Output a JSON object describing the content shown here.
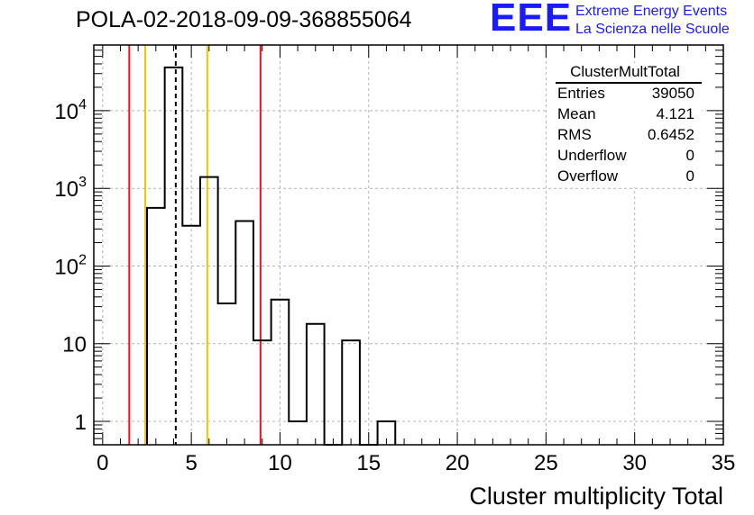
{
  "title": "POLA-02-2018-09-09-368855064",
  "logo": {
    "mark": "EEE",
    "line1": "Extreme Energy Events",
    "line2": "La Scienza nelle Scuole"
  },
  "stats_box": {
    "header": "ClusterMultTotal",
    "rows": [
      {
        "label": "Entries",
        "value": "39050"
      },
      {
        "label": "Mean",
        "value": "4.121"
      },
      {
        "label": "RMS",
        "value": "0.6452"
      },
      {
        "label": "Underflow",
        "value": "0"
      },
      {
        "label": "Overflow",
        "value": "0"
      }
    ]
  },
  "colors": {
    "histogram": "#000000",
    "red_line": "#e8141e",
    "yellow_line": "#f5c400",
    "mean_line": "#000000",
    "grid": "#b4b4b4",
    "logo": "#1a1aff"
  },
  "chart_data": {
    "type": "bar",
    "style": "step-histogram",
    "xlabel": "Cluster multiplicity Total",
    "ylabel": "",
    "xlim": [
      -0.5,
      35
    ],
    "ylim": [
      0.5,
      70000
    ],
    "log_y": true,
    "grid": true,
    "bin_width": 1,
    "bins_x_low": [
      2.5,
      3.5,
      4.5,
      5.5,
      6.5,
      7.5,
      8.5,
      9.5,
      10.5,
      11.5,
      12.5,
      13.5,
      14.5,
      15.5
    ],
    "values": [
      560,
      36000,
      330,
      1400,
      33,
      380,
      11,
      37,
      1,
      18,
      0,
      11,
      0,
      1
    ],
    "x_ticks": [
      0,
      5,
      10,
      15,
      20,
      25,
      30,
      35
    ],
    "x_tick_labels": [
      "0",
      "5",
      "10",
      "15",
      "20",
      "25",
      "30",
      "35"
    ],
    "y_ticks": [
      1,
      10,
      100,
      1000,
      10000
    ],
    "y_tick_labels": [
      {
        "base": "1",
        "exp": ""
      },
      {
        "base": "10",
        "exp": ""
      },
      {
        "base": "10",
        "exp": "2"
      },
      {
        "base": "10",
        "exp": "3"
      },
      {
        "base": "10",
        "exp": "4"
      }
    ],
    "vertical_lines": [
      {
        "x": 1.5,
        "color": "red"
      },
      {
        "x": 8.9,
        "color": "red"
      },
      {
        "x": 2.4,
        "color": "yellow"
      },
      {
        "x": 5.9,
        "color": "yellow"
      },
      {
        "x": 4.121,
        "color": "black",
        "dashed": true
      }
    ],
    "legend": "top-right"
  }
}
